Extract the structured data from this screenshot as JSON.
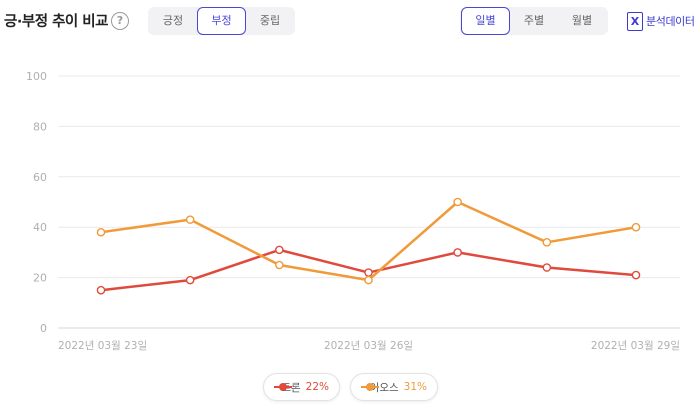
{
  "header": {
    "title": "긍·부정 추이 비교",
    "help_icon": "?",
    "sentiment_tabs": [
      {
        "label": "긍정",
        "active": false
      },
      {
        "label": "부정",
        "active": true
      },
      {
        "label": "중립",
        "active": false
      }
    ],
    "period_tabs": [
      {
        "label": "일별",
        "active": true
      },
      {
        "label": "주별",
        "active": false
      },
      {
        "label": "월별",
        "active": false
      }
    ],
    "export_icon": "excel-icon",
    "export_label": "분석데이터"
  },
  "chart_data": {
    "type": "line",
    "x": [
      "2022-03-23",
      "2022-03-24",
      "2022-03-25",
      "2022-03-26",
      "2022-03-27",
      "2022-03-28",
      "2022-03-29"
    ],
    "x_tick_labels": [
      {
        "index": 0,
        "label": "2022년 03월 23일"
      },
      {
        "index": 3,
        "label": "2022년 03월 26일"
      },
      {
        "index": 6,
        "label": "2022년 03월 29일"
      }
    ],
    "ylim": [
      0,
      100
    ],
    "y_ticks": [
      0,
      20,
      40,
      60,
      80,
      100
    ],
    "grid": true,
    "legend_position": "bottom-center",
    "series": [
      {
        "name": "트론",
        "share": "22%",
        "color": "#e04a3c",
        "values": [
          15,
          19,
          31,
          22,
          30,
          24,
          21
        ]
      },
      {
        "name": "이오스",
        "share": "31%",
        "color": "#f09a3a",
        "values": [
          38,
          43,
          25,
          19,
          50,
          34,
          40
        ]
      }
    ]
  }
}
